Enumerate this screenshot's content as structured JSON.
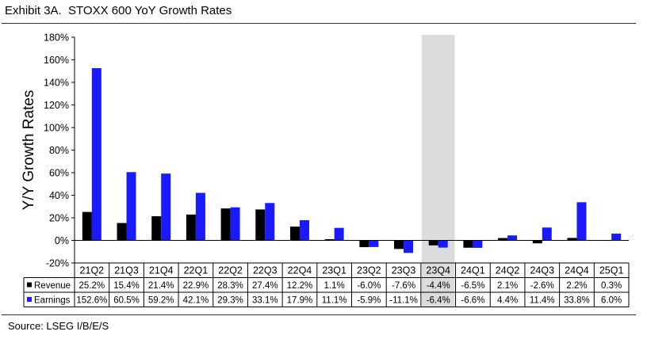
{
  "title": "Exhibit 3A.  STOXX 600 YoY Growth Rates",
  "source": "Source: LSEG I/B/E/S",
  "chart_data": {
    "type": "bar",
    "title": "Exhibit 3A.  STOXX 600 YoY Growth Rates",
    "ylabel": "Y/Y Growth Rates",
    "xlabel": "",
    "ylim": [
      -20,
      180
    ],
    "yticks": [
      -20,
      0,
      20,
      40,
      60,
      80,
      100,
      120,
      140,
      160,
      180
    ],
    "ytick_labels": [
      "-20%",
      "0%",
      "20%",
      "40%",
      "60%",
      "80%",
      "100%",
      "120%",
      "140%",
      "160%",
      "180%"
    ],
    "categories": [
      "21Q2",
      "21Q3",
      "21Q4",
      "22Q1",
      "22Q2",
      "22Q3",
      "22Q4",
      "23Q1",
      "23Q2",
      "23Q3",
      "23Q4",
      "24Q1",
      "24Q2",
      "24Q3",
      "24Q4",
      "25Q1"
    ],
    "highlight_category": "23Q4",
    "series": [
      {
        "name": "Revenue",
        "color": "#000000",
        "values": [
          25.2,
          15.4,
          21.4,
          22.9,
          28.3,
          27.4,
          12.2,
          1.1,
          -6.0,
          -7.6,
          -4.4,
          -6.5,
          2.1,
          -2.6,
          2.2,
          0.3
        ],
        "labels": [
          "25.2%",
          "15.4%",
          "21.4%",
          "22.9%",
          "28.3%",
          "27.4%",
          "12.2%",
          "1.1%",
          "-6.0%",
          "-7.6%",
          "-4.4%",
          "-6.5%",
          "2.1%",
          "-2.6%",
          "2.2%",
          "0.3%"
        ]
      },
      {
        "name": "Earnings",
        "color": "#1a1aff",
        "values": [
          152.6,
          60.5,
          59.2,
          42.1,
          29.3,
          33.1,
          17.9,
          11.1,
          -5.9,
          -11.1,
          -6.4,
          -6.6,
          4.4,
          11.4,
          33.8,
          6.0
        ],
        "labels": [
          "152.6%",
          "60.5%",
          "59.2%",
          "42.1%",
          "29.3%",
          "33.1%",
          "17.9%",
          "11.1%",
          "-5.9%",
          "-11.1%",
          "-6.4%",
          "-6.6%",
          "4.4%",
          "11.4%",
          "33.8%",
          "6.0%"
        ]
      }
    ],
    "grid": false,
    "legend": "data-table"
  }
}
